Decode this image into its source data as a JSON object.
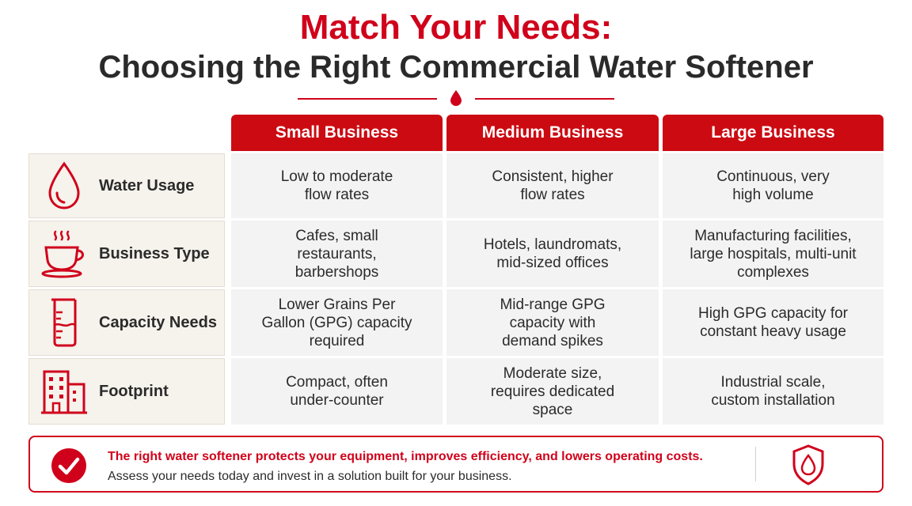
{
  "header": {
    "title": "Match Your Needs:",
    "subtitle": "Choosing the Right Commercial Water Softener"
  },
  "columns": [
    "Small Business",
    "Medium Business",
    "Large Business"
  ],
  "rows": [
    {
      "label": "Water Usage",
      "icon": "water-drop-icon",
      "cells": [
        [
          "Low to moderate",
          "flow rates"
        ],
        [
          "Consistent, higher",
          "flow rates"
        ],
        [
          "Continuous, very",
          "high volume"
        ]
      ]
    },
    {
      "label": "Business Type",
      "icon": "coffee-cup-icon",
      "cells": [
        [
          "Cafes, small",
          "restaurants,",
          "barbershops"
        ],
        [
          "Hotels, laundromats,",
          "mid-sized offices"
        ],
        [
          "Manufacturing facilities,",
          "large hospitals, multi-unit",
          "complexes"
        ]
      ]
    },
    {
      "label": "Capacity Needs",
      "icon": "beaker-icon",
      "cells": [
        [
          "Lower Grains Per",
          "Gallon (GPG) capacity",
          "required"
        ],
        [
          "Mid-range GPG",
          "capacity with",
          "demand spikes"
        ],
        [
          "High GPG capacity for",
          "constant heavy usage"
        ]
      ]
    },
    {
      "label": "Footprint",
      "icon": "building-icon",
      "cells": [
        [
          "Compact, often",
          "under-counter"
        ],
        [
          "Moderate size,",
          "requires dedicated",
          "space"
        ],
        [
          "Industrial scale,",
          "custom installation"
        ]
      ]
    }
  ],
  "footer": {
    "headline": "The right water softener protects your equipment, improves efficiency, and lowers operating costs.",
    "subline": "Assess your needs today and invest in a solution built for your business."
  },
  "colors": {
    "accent": "#d0021b",
    "header_bg": "#cc0a12",
    "cell_bg": "#f3f3f3",
    "label_bg": "#f6f2ec"
  }
}
